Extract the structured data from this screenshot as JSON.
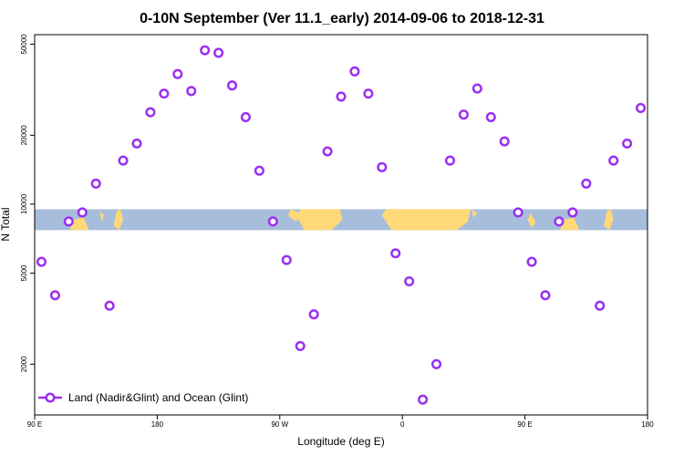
{
  "chart_data": {
    "type": "scatter",
    "title": "0-10N September (Ver 11.1_early)   2014-09-06 to 2018-12-31",
    "xlabel": "Longitude (deg E)",
    "ylabel": "N Total",
    "y_scale": "log",
    "ylim": [
      1200,
      55000
    ],
    "xlim_index": [
      0,
      450
    ],
    "x_ticks": [
      {
        "pos": 0,
        "label": "90 E"
      },
      {
        "pos": 90,
        "label": "180"
      },
      {
        "pos": 180,
        "label": "90 W"
      },
      {
        "pos": 270,
        "label": "0"
      },
      {
        "pos": 360,
        "label": "90 E"
      },
      {
        "pos": 450,
        "label": "180"
      }
    ],
    "y_ticks": [
      {
        "value": 2000,
        "label": "2000"
      },
      {
        "value": 5000,
        "label": "5000"
      },
      {
        "value": 10000,
        "label": "10000"
      },
      {
        "value": 20000,
        "label": "20000"
      },
      {
        "value": 50000,
        "label": "50000"
      }
    ],
    "map_band": {
      "ocean_color": "#a6bddb",
      "land_color": "#ffd878",
      "y_top": 9500,
      "y_bottom": 7700
    },
    "series": [
      {
        "name": "Land (Nadir&Glint) and Ocean (Glint)",
        "color": "#9b30f0",
        "x": [
          5,
          15,
          25,
          35,
          45,
          55,
          65,
          75,
          85,
          95,
          105,
          115,
          125,
          135,
          145,
          155,
          165,
          175,
          185,
          195,
          205,
          215,
          225,
          235,
          245,
          255,
          265,
          275,
          285,
          295,
          305,
          315,
          325,
          335,
          345,
          355,
          365,
          375,
          385,
          395,
          405,
          415,
          425,
          435,
          445
        ],
        "values": [
          5600,
          4000,
          8400,
          9200,
          12300,
          3600,
          15500,
          18400,
          25200,
          30400,
          37000,
          31200,
          47000,
          45800,
          33000,
          24000,
          14000,
          8400,
          5700,
          2400,
          3300,
          17000,
          29500,
          38000,
          30400,
          14500,
          6100,
          4600,
          1400,
          2000,
          15500,
          24600,
          32000,
          24000,
          18800,
          9200,
          5600,
          4000,
          8400,
          9200,
          12300,
          3600,
          15500,
          18400,
          26300
        ]
      }
    ],
    "legend_position": "bottom-left"
  }
}
